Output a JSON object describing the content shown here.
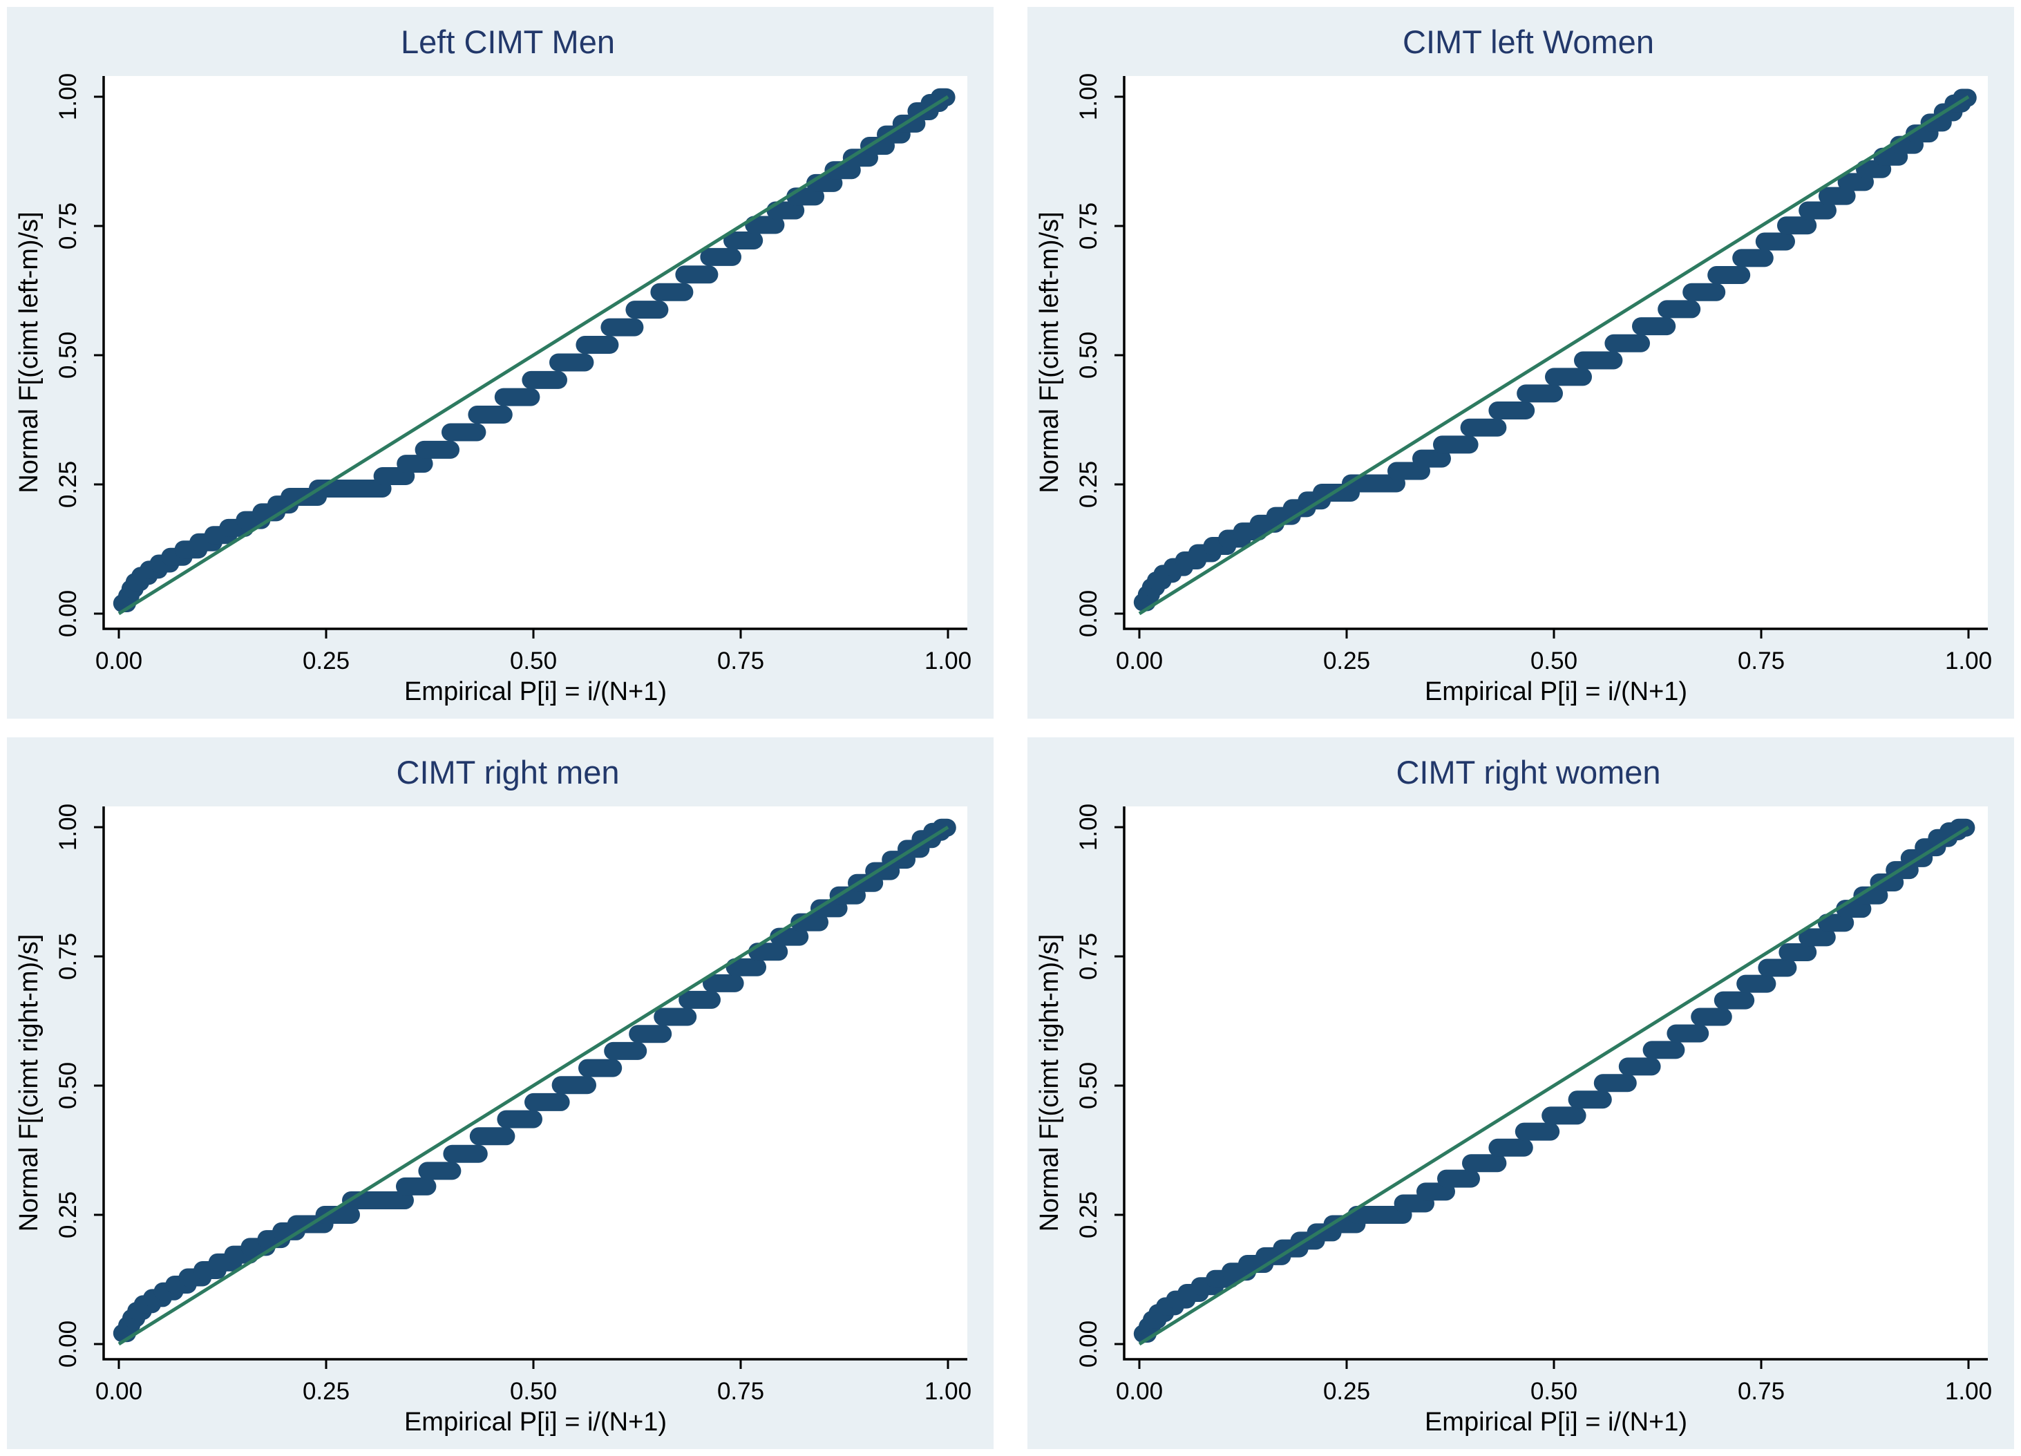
{
  "figure": {
    "background": "#ffffff",
    "panel_background": "#e9f0f4",
    "plot_background": "#ffffff",
    "dot_color": "#1c4b73",
    "line_color": "#2d7a60",
    "title_color": "#22386a",
    "axis_color": "#000000",
    "text_color": "#000000"
  },
  "chart_data": [
    {
      "type": "scatter",
      "variant": "normal-probability-pp-plot",
      "title": "Left CIMT Men",
      "xlabel": "Empirical P[i] = i/(N+1)",
      "ylabel": "Normal F[(cimt left-m)/s]",
      "xlim": [
        0,
        1
      ],
      "ylim": [
        0,
        1
      ],
      "grid": false,
      "xticks": [
        "0.00",
        "0.25",
        "0.50",
        "0.75",
        "1.00"
      ],
      "yticks": [
        "0.00",
        "0.25",
        "0.50",
        "0.75",
        "1.00"
      ],
      "reference_line": {
        "from": [
          0,
          0
        ],
        "to": [
          1,
          1
        ]
      },
      "dot_runs": [
        [
          0.004,
          0.01,
          0.02
        ],
        [
          0.01,
          0.014,
          0.034
        ],
        [
          0.014,
          0.019,
          0.048
        ],
        [
          0.019,
          0.026,
          0.061
        ],
        [
          0.026,
          0.036,
          0.073
        ],
        [
          0.036,
          0.048,
          0.085
        ],
        [
          0.048,
          0.062,
          0.097
        ],
        [
          0.062,
          0.078,
          0.11
        ],
        [
          0.078,
          0.096,
          0.124
        ],
        [
          0.096,
          0.114,
          0.138
        ],
        [
          0.114,
          0.132,
          0.152
        ],
        [
          0.132,
          0.152,
          0.166
        ],
        [
          0.152,
          0.172,
          0.181
        ],
        [
          0.172,
          0.19,
          0.196
        ],
        [
          0.19,
          0.206,
          0.211
        ],
        [
          0.206,
          0.24,
          0.226
        ],
        [
          0.24,
          0.318,
          0.242
        ],
        [
          0.318,
          0.346,
          0.266
        ],
        [
          0.346,
          0.368,
          0.29
        ],
        [
          0.368,
          0.4,
          0.317
        ],
        [
          0.4,
          0.432,
          0.351
        ],
        [
          0.432,
          0.464,
          0.385
        ],
        [
          0.464,
          0.497,
          0.419
        ],
        [
          0.497,
          0.53,
          0.452
        ],
        [
          0.53,
          0.562,
          0.486
        ],
        [
          0.562,
          0.592,
          0.52
        ],
        [
          0.592,
          0.622,
          0.554
        ],
        [
          0.622,
          0.652,
          0.588
        ],
        [
          0.652,
          0.682,
          0.622
        ],
        [
          0.682,
          0.712,
          0.656
        ],
        [
          0.712,
          0.74,
          0.69
        ],
        [
          0.74,
          0.766,
          0.722
        ],
        [
          0.766,
          0.792,
          0.752
        ],
        [
          0.792,
          0.816,
          0.78
        ],
        [
          0.816,
          0.84,
          0.807
        ],
        [
          0.84,
          0.862,
          0.833
        ],
        [
          0.862,
          0.884,
          0.858
        ],
        [
          0.884,
          0.905,
          0.882
        ],
        [
          0.905,
          0.925,
          0.905
        ],
        [
          0.925,
          0.944,
          0.927
        ],
        [
          0.944,
          0.962,
          0.948
        ],
        [
          0.962,
          0.978,
          0.972
        ],
        [
          0.978,
          0.99,
          0.988
        ],
        [
          0.99,
          0.998,
          0.999
        ]
      ]
    },
    {
      "type": "scatter",
      "variant": "normal-probability-pp-plot",
      "title": "CIMT left Women",
      "xlabel": "Empirical P[i] = i/(N+1)",
      "ylabel": "Normal F[(cimt left-m)/s]",
      "xlim": [
        0,
        1
      ],
      "ylim": [
        0,
        1
      ],
      "grid": false,
      "xticks": [
        "0.00",
        "0.25",
        "0.50",
        "0.75",
        "1.00"
      ],
      "yticks": [
        "0.00",
        "0.25",
        "0.50",
        "0.75",
        "1.00"
      ],
      "reference_line": {
        "from": [
          0,
          0
        ],
        "to": [
          1,
          1
        ]
      },
      "dot_runs": [
        [
          0.004,
          0.009,
          0.022
        ],
        [
          0.009,
          0.014,
          0.037
        ],
        [
          0.014,
          0.02,
          0.051
        ],
        [
          0.02,
          0.028,
          0.064
        ],
        [
          0.028,
          0.04,
          0.077
        ],
        [
          0.04,
          0.054,
          0.09
        ],
        [
          0.054,
          0.07,
          0.103
        ],
        [
          0.07,
          0.088,
          0.117
        ],
        [
          0.088,
          0.106,
          0.131
        ],
        [
          0.106,
          0.124,
          0.145
        ],
        [
          0.124,
          0.144,
          0.159
        ],
        [
          0.144,
          0.164,
          0.174
        ],
        [
          0.164,
          0.184,
          0.189
        ],
        [
          0.184,
          0.202,
          0.204
        ],
        [
          0.202,
          0.22,
          0.219
        ],
        [
          0.22,
          0.255,
          0.234
        ],
        [
          0.255,
          0.31,
          0.252
        ],
        [
          0.31,
          0.34,
          0.276
        ],
        [
          0.34,
          0.365,
          0.3
        ],
        [
          0.365,
          0.398,
          0.327
        ],
        [
          0.398,
          0.432,
          0.36
        ],
        [
          0.432,
          0.466,
          0.393
        ],
        [
          0.466,
          0.5,
          0.426
        ],
        [
          0.5,
          0.535,
          0.458
        ],
        [
          0.535,
          0.572,
          0.49
        ],
        [
          0.572,
          0.605,
          0.523
        ],
        [
          0.605,
          0.636,
          0.556
        ],
        [
          0.636,
          0.666,
          0.589
        ],
        [
          0.666,
          0.696,
          0.622
        ],
        [
          0.696,
          0.726,
          0.655
        ],
        [
          0.726,
          0.754,
          0.688
        ],
        [
          0.754,
          0.78,
          0.72
        ],
        [
          0.78,
          0.806,
          0.751
        ],
        [
          0.806,
          0.83,
          0.78
        ],
        [
          0.83,
          0.853,
          0.808
        ],
        [
          0.853,
          0.875,
          0.835
        ],
        [
          0.875,
          0.896,
          0.86
        ],
        [
          0.896,
          0.916,
          0.884
        ],
        [
          0.916,
          0.935,
          0.907
        ],
        [
          0.935,
          0.953,
          0.929
        ],
        [
          0.953,
          0.969,
          0.95
        ],
        [
          0.969,
          0.982,
          0.97
        ],
        [
          0.982,
          0.992,
          0.987
        ],
        [
          0.992,
          0.999,
          0.998
        ]
      ]
    },
    {
      "type": "scatter",
      "variant": "normal-probability-pp-plot",
      "title": "CIMT right men",
      "xlabel": "Empirical P[i] = i/(N+1)",
      "ylabel": "Normal F[(cimt right-m)/s]",
      "xlim": [
        0,
        1
      ],
      "ylim": [
        0,
        1
      ],
      "grid": false,
      "xticks": [
        "0.00",
        "0.25",
        "0.50",
        "0.75",
        "1.00"
      ],
      "yticks": [
        "0.00",
        "0.25",
        "0.50",
        "0.75",
        "1.00"
      ],
      "reference_line": {
        "from": [
          0,
          0
        ],
        "to": [
          1,
          1
        ]
      },
      "dot_runs": [
        [
          0.004,
          0.01,
          0.021
        ],
        [
          0.01,
          0.015,
          0.036
        ],
        [
          0.015,
          0.021,
          0.05
        ],
        [
          0.021,
          0.029,
          0.064
        ],
        [
          0.029,
          0.04,
          0.077
        ],
        [
          0.04,
          0.053,
          0.089
        ],
        [
          0.053,
          0.067,
          0.102
        ],
        [
          0.067,
          0.083,
          0.115
        ],
        [
          0.083,
          0.101,
          0.129
        ],
        [
          0.101,
          0.119,
          0.143
        ],
        [
          0.119,
          0.138,
          0.158
        ],
        [
          0.138,
          0.158,
          0.173
        ],
        [
          0.158,
          0.178,
          0.188
        ],
        [
          0.178,
          0.196,
          0.203
        ],
        [
          0.196,
          0.214,
          0.218
        ],
        [
          0.214,
          0.248,
          0.232
        ],
        [
          0.248,
          0.28,
          0.25
        ],
        [
          0.28,
          0.345,
          0.278
        ],
        [
          0.345,
          0.372,
          0.305
        ],
        [
          0.372,
          0.402,
          0.335
        ],
        [
          0.402,
          0.434,
          0.368
        ],
        [
          0.434,
          0.467,
          0.402
        ],
        [
          0.467,
          0.5,
          0.435
        ],
        [
          0.5,
          0.533,
          0.468
        ],
        [
          0.533,
          0.565,
          0.501
        ],
        [
          0.565,
          0.596,
          0.534
        ],
        [
          0.596,
          0.626,
          0.567
        ],
        [
          0.626,
          0.656,
          0.6
        ],
        [
          0.656,
          0.686,
          0.633
        ],
        [
          0.686,
          0.715,
          0.666
        ],
        [
          0.715,
          0.743,
          0.698
        ],
        [
          0.743,
          0.77,
          0.729
        ],
        [
          0.77,
          0.796,
          0.759
        ],
        [
          0.796,
          0.821,
          0.788
        ],
        [
          0.821,
          0.845,
          0.816
        ],
        [
          0.845,
          0.868,
          0.843
        ],
        [
          0.868,
          0.89,
          0.868
        ],
        [
          0.89,
          0.911,
          0.892
        ],
        [
          0.911,
          0.931,
          0.915
        ],
        [
          0.931,
          0.95,
          0.937
        ],
        [
          0.95,
          0.967,
          0.958
        ],
        [
          0.967,
          0.981,
          0.977
        ],
        [
          0.981,
          0.992,
          0.991
        ],
        [
          0.992,
          0.999,
          0.999
        ]
      ]
    },
    {
      "type": "scatter",
      "variant": "normal-probability-pp-plot",
      "title": "CIMT right women",
      "xlabel": "Empirical P[i] = i/(N+1)",
      "ylabel": "Normal F[(cimt right-m)/s]",
      "xlim": [
        0,
        1
      ],
      "ylim": [
        0,
        1
      ],
      "grid": false,
      "xticks": [
        "0.00",
        "0.25",
        "0.50",
        "0.75",
        "1.00"
      ],
      "yticks": [
        "0.00",
        "0.25",
        "0.50",
        "0.75",
        "1.00"
      ],
      "reference_line": {
        "from": [
          0,
          0
        ],
        "to": [
          1,
          1
        ]
      },
      "dot_runs": [
        [
          0.004,
          0.01,
          0.02
        ],
        [
          0.01,
          0.015,
          0.034
        ],
        [
          0.015,
          0.022,
          0.047
        ],
        [
          0.022,
          0.031,
          0.06
        ],
        [
          0.031,
          0.043,
          0.073
        ],
        [
          0.043,
          0.057,
          0.086
        ],
        [
          0.057,
          0.073,
          0.099
        ],
        [
          0.073,
          0.091,
          0.112
        ],
        [
          0.091,
          0.11,
          0.126
        ],
        [
          0.11,
          0.13,
          0.14
        ],
        [
          0.13,
          0.151,
          0.155
        ],
        [
          0.151,
          0.172,
          0.17
        ],
        [
          0.172,
          0.193,
          0.185
        ],
        [
          0.193,
          0.213,
          0.2
        ],
        [
          0.213,
          0.233,
          0.216
        ],
        [
          0.233,
          0.262,
          0.232
        ],
        [
          0.262,
          0.318,
          0.25
        ],
        [
          0.318,
          0.345,
          0.272
        ],
        [
          0.345,
          0.37,
          0.295
        ],
        [
          0.37,
          0.4,
          0.32
        ],
        [
          0.4,
          0.432,
          0.35
        ],
        [
          0.432,
          0.464,
          0.38
        ],
        [
          0.464,
          0.496,
          0.411
        ],
        [
          0.496,
          0.528,
          0.442
        ],
        [
          0.528,
          0.559,
          0.473
        ],
        [
          0.559,
          0.589,
          0.505
        ],
        [
          0.589,
          0.618,
          0.537
        ],
        [
          0.618,
          0.647,
          0.569
        ],
        [
          0.647,
          0.676,
          0.601
        ],
        [
          0.676,
          0.704,
          0.633
        ],
        [
          0.704,
          0.731,
          0.665
        ],
        [
          0.731,
          0.757,
          0.697
        ],
        [
          0.757,
          0.782,
          0.728
        ],
        [
          0.782,
          0.806,
          0.758
        ],
        [
          0.806,
          0.829,
          0.787
        ],
        [
          0.829,
          0.851,
          0.815
        ],
        [
          0.851,
          0.872,
          0.842
        ],
        [
          0.872,
          0.892,
          0.868
        ],
        [
          0.892,
          0.911,
          0.893
        ],
        [
          0.911,
          0.929,
          0.917
        ],
        [
          0.929,
          0.946,
          0.94
        ],
        [
          0.946,
          0.962,
          0.961
        ],
        [
          0.962,
          0.976,
          0.979
        ],
        [
          0.976,
          0.988,
          0.992
        ],
        [
          0.988,
          0.997,
          0.999
        ]
      ]
    }
  ]
}
